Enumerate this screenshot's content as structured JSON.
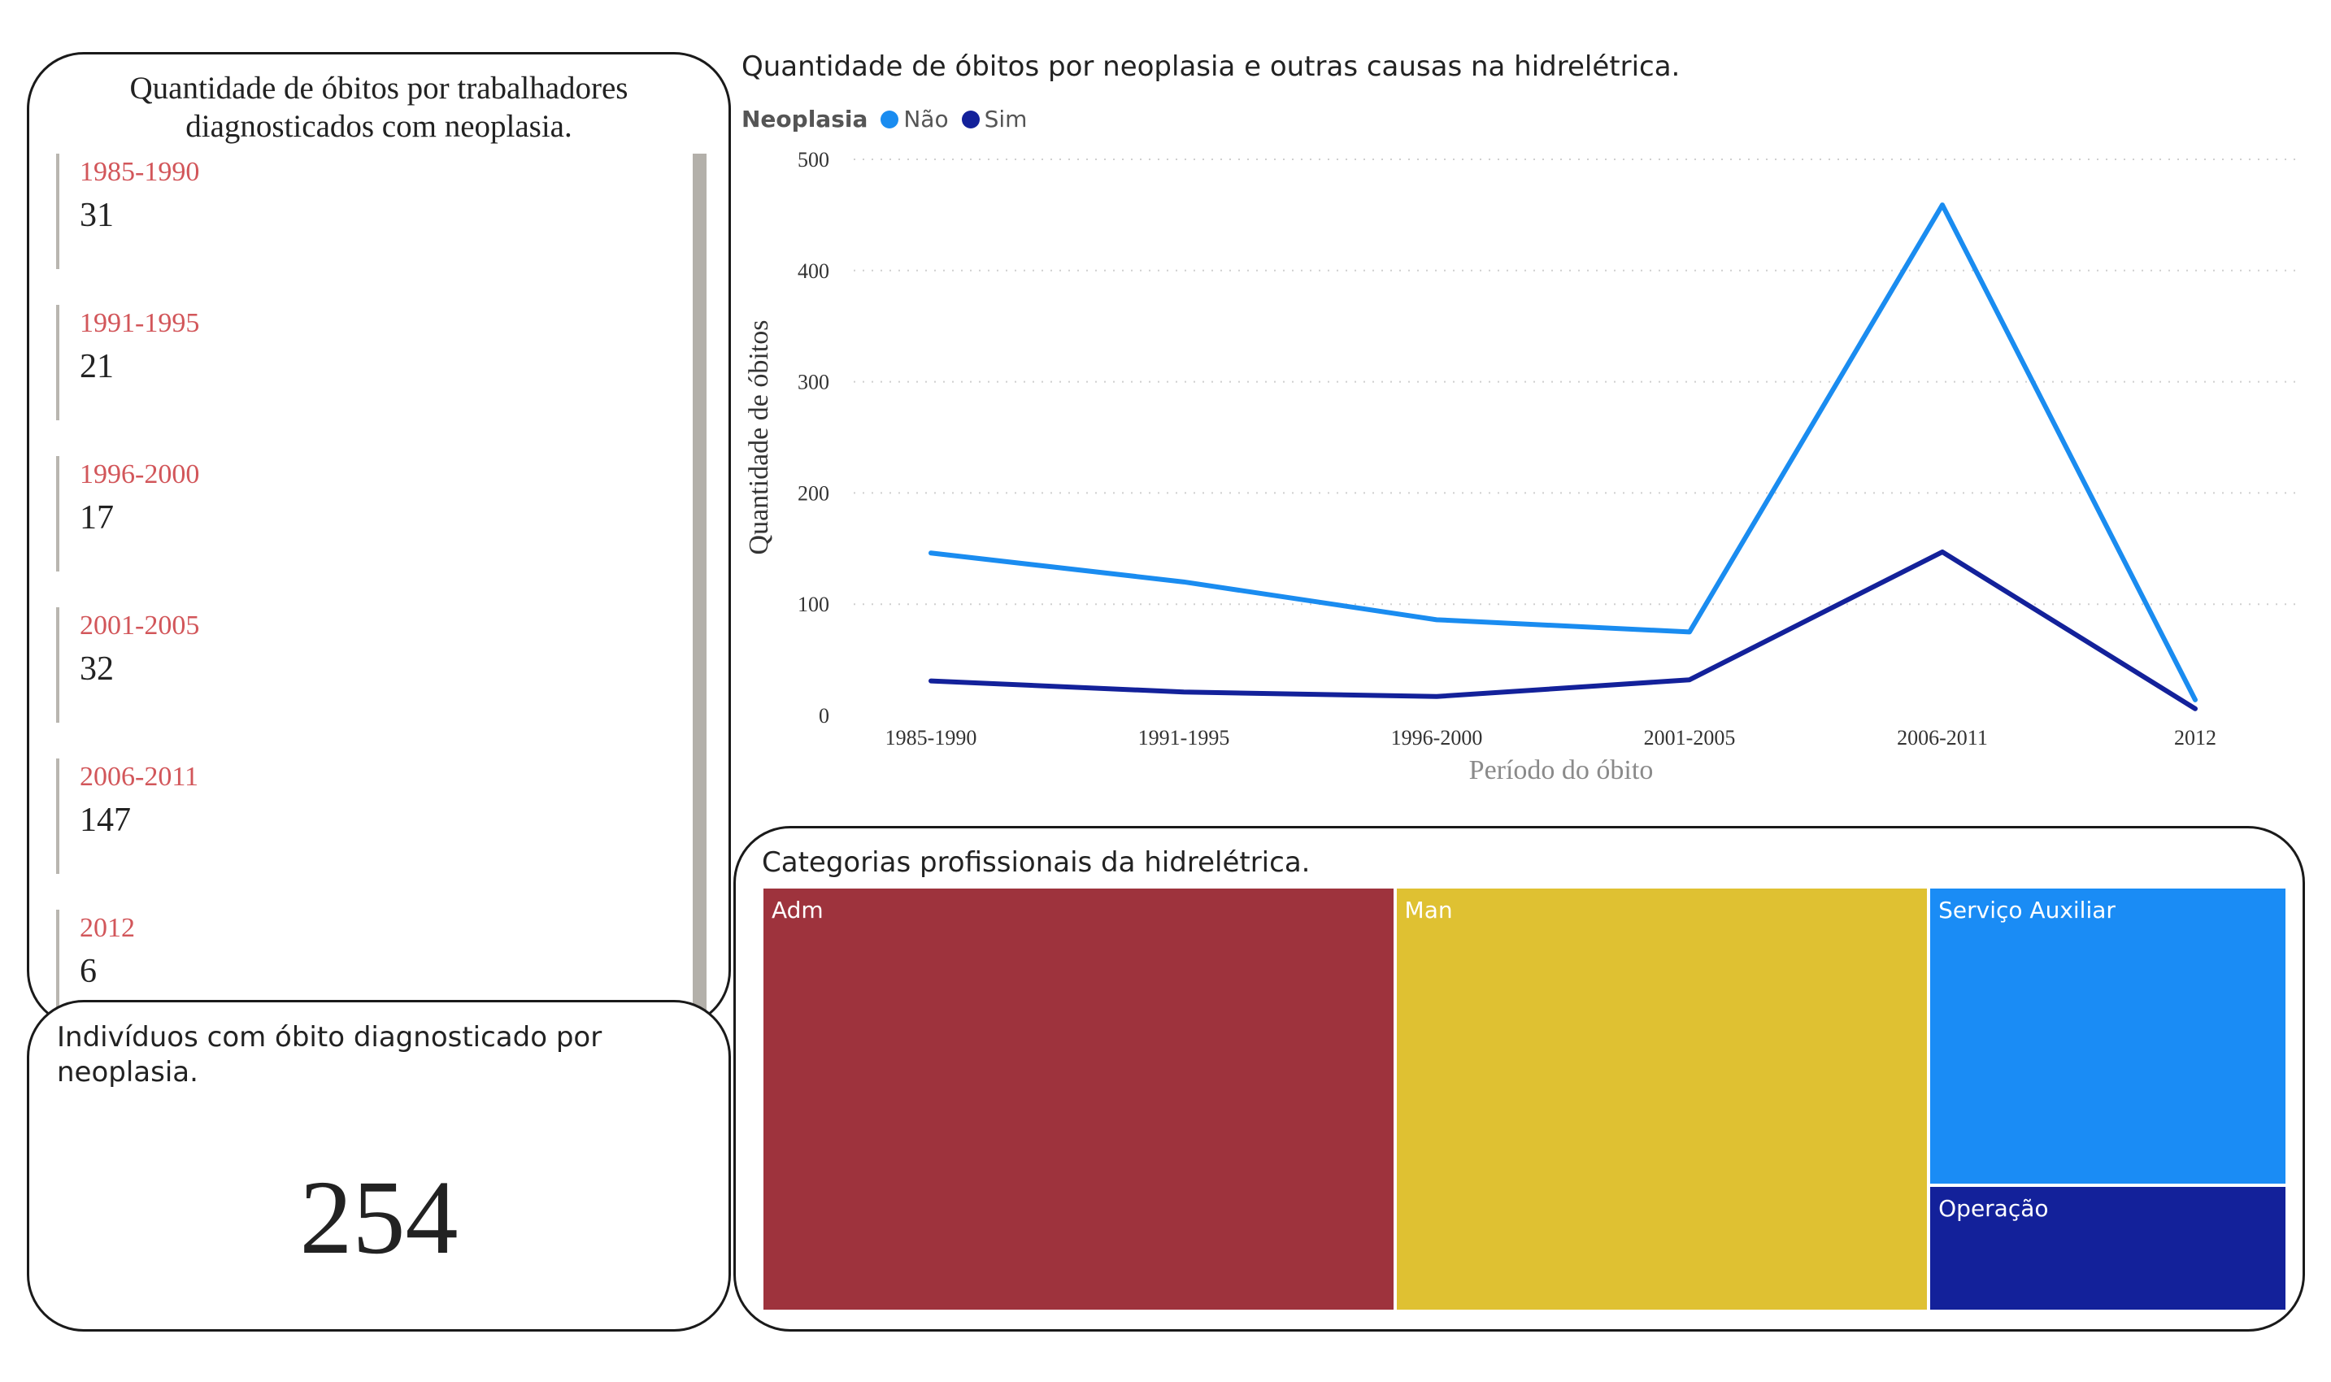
{
  "list_card": {
    "title": "Quantidade de óbitos por trabalhadores diagnosticados com neoplasia.",
    "items": [
      {
        "period": "1985-1990",
        "value": "31"
      },
      {
        "period": "1991-1995",
        "value": "21"
      },
      {
        "period": "1996-2000",
        "value": "17"
      },
      {
        "period": "2001-2005",
        "value": "32"
      },
      {
        "period": "2006-2011",
        "value": "147"
      },
      {
        "period": "2012",
        "value": "6"
      }
    ]
  },
  "kpi_card": {
    "title": "Indivíduos com óbito diagnosticado por neoplasia.",
    "value": "254"
  },
  "line_chart": {
    "title": "Quantidade de óbitos por neoplasia e outras causas na hidrelétrica.",
    "legend_title": "Neoplasia",
    "legend": [
      "Não",
      "Sim"
    ]
  },
  "treemap_card": {
    "title": "Categorias profissionais da hidrelétrica."
  },
  "chart_data": [
    {
      "type": "line",
      "title": "Quantidade de óbitos por neoplasia e outras causas na hidrelétrica.",
      "categories": [
        "1985-1990",
        "1991-1995",
        "1996-2000",
        "2001-2005",
        "2006-2011",
        "2012"
      ],
      "series": [
        {
          "name": "Não",
          "values": [
            146,
            120,
            86,
            75,
            459,
            14
          ],
          "color": "#1a8cf0"
        },
        {
          "name": "Sim",
          "values": [
            31,
            21,
            17,
            32,
            147,
            6
          ],
          "color": "#13219a"
        }
      ],
      "xlabel": "Período do óbito",
      "ylabel": "Quantidade de óbitos",
      "ylim": [
        0,
        500
      ],
      "yticks": [
        0,
        100,
        200,
        300,
        400,
        500
      ],
      "grid": "horizontal dotted",
      "legend_position": "top-left"
    },
    {
      "type": "treemap",
      "title": "Categorias profissionais da hidrelétrica.",
      "categories": [
        "Adm",
        "Man",
        "Serviço Auxiliar",
        "Operação"
      ],
      "values": [
        41.5,
        35.0,
        16.5,
        7.0
      ],
      "colors": [
        "#9e333d",
        "#dfc132",
        "#1a8cf5",
        "#13219a"
      ]
    }
  ]
}
